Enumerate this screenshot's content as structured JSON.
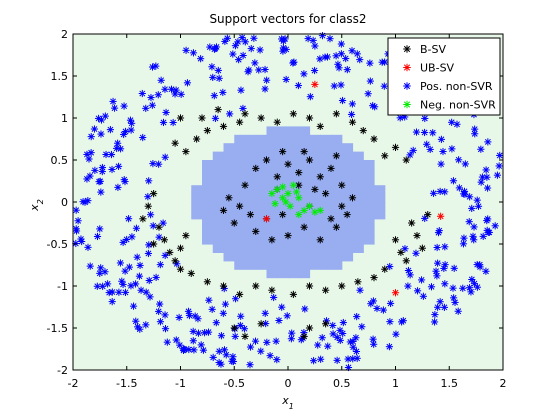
{
  "chart_data": {
    "type": "scatter",
    "title": "Support vectors for class2",
    "xlabel": "x1",
    "ylabel": "x2",
    "xlim": [
      -2,
      2
    ],
    "ylim": [
      -2,
      2
    ],
    "xticks": [
      -2,
      -1.5,
      -1,
      -0.5,
      0,
      0.5,
      1,
      1.5,
      2
    ],
    "yticks": [
      -2,
      -1.5,
      -1,
      -0.5,
      0,
      0.5,
      1,
      1.5,
      2
    ],
    "xtick_labels": [
      "-2",
      "-1.5",
      "-1",
      "-0.5",
      "0",
      "0.5",
      "1",
      "1.5",
      "2"
    ],
    "ytick_labels": [
      "-2",
      "-1.5",
      "-1",
      "-0.5",
      "0",
      "0.5",
      "1",
      "1.5",
      "2"
    ],
    "grid": false,
    "legend_position": "top-right",
    "background_color": "#e8f8e8",
    "region_color": "#98aef0",
    "region": {
      "type": "disk",
      "center": [
        0,
        0
      ],
      "radius": 0.88
    },
    "series": [
      {
        "name": "B-SV",
        "color": "#000000",
        "marker": "asterisk",
        "description_points": [
          [
            -0.45,
            0.95
          ],
          [
            -0.6,
            0.9
          ],
          [
            -0.4,
            1.05
          ],
          [
            -0.25,
            1.0
          ],
          [
            -0.1,
            0.95
          ],
          [
            0.05,
            1.05
          ],
          [
            0.2,
            1.0
          ],
          [
            0.3,
            0.9
          ],
          [
            0.45,
            1.05
          ],
          [
            0.6,
            0.95
          ],
          [
            -0.75,
            0.85
          ],
          [
            -0.85,
            0.75
          ],
          [
            0.7,
            0.85
          ],
          [
            0.8,
            0.75
          ],
          [
            -1.05,
            0.7
          ],
          [
            -0.95,
            0.6
          ],
          [
            1.0,
            0.65
          ],
          [
            1.1,
            0.5
          ],
          [
            0.9,
            0.55
          ],
          [
            -1.3,
            -0.05
          ],
          [
            -1.25,
            0.1
          ],
          [
            -1.35,
            -0.2
          ],
          [
            -1.2,
            -0.3
          ],
          [
            -1.15,
            -0.45
          ],
          [
            -1.0,
            -0.55
          ],
          [
            -0.95,
            -0.4
          ],
          [
            -1.1,
            -0.6
          ],
          [
            -1.25,
            -0.5
          ],
          [
            -1.05,
            -0.7
          ],
          [
            1.15,
            -0.25
          ],
          [
            1.2,
            -0.4
          ],
          [
            1.25,
            -0.55
          ],
          [
            1.05,
            -0.6
          ],
          [
            1.1,
            -0.7
          ],
          [
            1.3,
            -0.15
          ],
          [
            1.0,
            -0.45
          ],
          [
            -0.75,
            -0.95
          ],
          [
            -0.6,
            -1.0
          ],
          [
            -0.45,
            -1.1
          ],
          [
            -0.3,
            -1.0
          ],
          [
            -0.15,
            -1.05
          ],
          [
            0.05,
            -1.1
          ],
          [
            0.2,
            -1.0
          ],
          [
            0.35,
            -1.05
          ],
          [
            0.5,
            -1.0
          ],
          [
            0.65,
            -0.95
          ],
          [
            0.8,
            -0.9
          ],
          [
            0.9,
            -0.8
          ],
          [
            -0.9,
            -0.85
          ],
          [
            -1.0,
            -0.8
          ],
          [
            -0.5,
            -1.5
          ],
          [
            -0.4,
            -1.6
          ],
          [
            -0.25,
            -1.45
          ],
          [
            0.2,
            -1.5
          ],
          [
            0.35,
            -1.45
          ],
          [
            0.15,
            -1.6
          ],
          [
            -1.0,
            1.0
          ],
          [
            -0.8,
            1.0
          ],
          [
            -0.65,
            1.1
          ],
          [
            -0.3,
            0.4
          ],
          [
            -0.2,
            0.5
          ],
          [
            -0.1,
            0.3
          ],
          [
            0.0,
            0.45
          ],
          [
            0.1,
            0.35
          ],
          [
            0.2,
            0.5
          ],
          [
            0.3,
            0.3
          ],
          [
            0.4,
            0.4
          ],
          [
            -0.4,
            0.2
          ],
          [
            0.5,
            0.2
          ],
          [
            -0.55,
            0.05
          ],
          [
            -0.45,
            -0.05
          ],
          [
            -0.35,
            -0.15
          ],
          [
            -0.5,
            -0.25
          ],
          [
            -0.3,
            -0.35
          ],
          [
            -0.15,
            -0.45
          ],
          [
            0.0,
            -0.4
          ],
          [
            0.15,
            -0.3
          ],
          [
            0.3,
            -0.45
          ],
          [
            0.45,
            -0.3
          ],
          [
            0.55,
            -0.15
          ],
          [
            0.6,
            0.05
          ],
          [
            0.5,
            -0.05
          ],
          [
            0.35,
            0.1
          ],
          [
            0.2,
            -0.05
          ],
          [
            0.1,
            0.2
          ],
          [
            -0.1,
            0.15
          ],
          [
            -0.2,
            -0.2
          ],
          [
            -0.05,
            -0.15
          ],
          [
            0.25,
            0.15
          ],
          [
            0.4,
            -0.2
          ],
          [
            -0.6,
            -0.1
          ],
          [
            0.15,
            0.6
          ],
          [
            -0.05,
            0.6
          ],
          [
            0.45,
            0.55
          ]
        ]
      },
      {
        "name": "UB-SV",
        "color": "#ff0000",
        "marker": "asterisk",
        "description_points": [
          [
            0.25,
            1.4
          ],
          [
            1.42,
            -0.17
          ],
          [
            1.0,
            -1.08
          ],
          [
            -0.2,
            -0.2
          ]
        ]
      },
      {
        "name": "Pos. non-SVR",
        "color": "#0000ff",
        "marker": "asterisk",
        "ring_inner_radius": 1.12,
        "ring_outer_radius": 2.05
      },
      {
        "name": "Neg. non-SVR",
        "color": "#00ee00",
        "marker": "asterisk",
        "description_points": [
          [
            -0.15,
            0.1
          ],
          [
            -0.1,
            0.15
          ],
          [
            -0.05,
            0.05
          ],
          [
            0.0,
            0.1
          ],
          [
            0.05,
            0.2
          ],
          [
            0.1,
            0.05
          ],
          [
            -0.12,
            -0.02
          ],
          [
            0.02,
            -0.05
          ],
          [
            0.08,
            0.12
          ],
          [
            -0.05,
            0.18
          ],
          [
            0.15,
            -0.1
          ],
          [
            0.25,
            -0.12
          ],
          [
            0.3,
            -0.1
          ],
          [
            0.1,
            -0.15
          ],
          [
            0.2,
            -0.05
          ],
          [
            -0.02,
            0.0
          ]
        ]
      }
    ]
  }
}
